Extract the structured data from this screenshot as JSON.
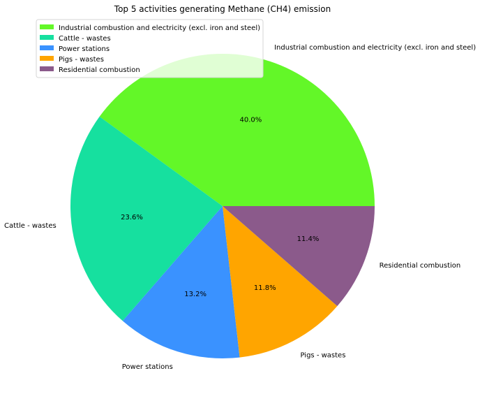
{
  "chart_data": {
    "type": "pie",
    "title": "Top 5 activities generating Methane (CH4) emission",
    "categories": [
      "Industrial combustion and electricity (excl. iron and steel)",
      "Cattle - wastes",
      "Power stations",
      "Pigs - wastes",
      "Residential combustion"
    ],
    "values": [
      40.0,
      23.6,
      13.2,
      11.8,
      11.4
    ],
    "value_labels": [
      "40.0%",
      "23.6%",
      "13.2%",
      "11.8%",
      "11.4%"
    ],
    "colors": [
      "#63f728",
      "#16e09f",
      "#3a92ff",
      "#ffa500",
      "#8b5a8b"
    ],
    "start_angle_deg": 0,
    "direction": "counterclockwise",
    "legend_position": "top-left"
  }
}
